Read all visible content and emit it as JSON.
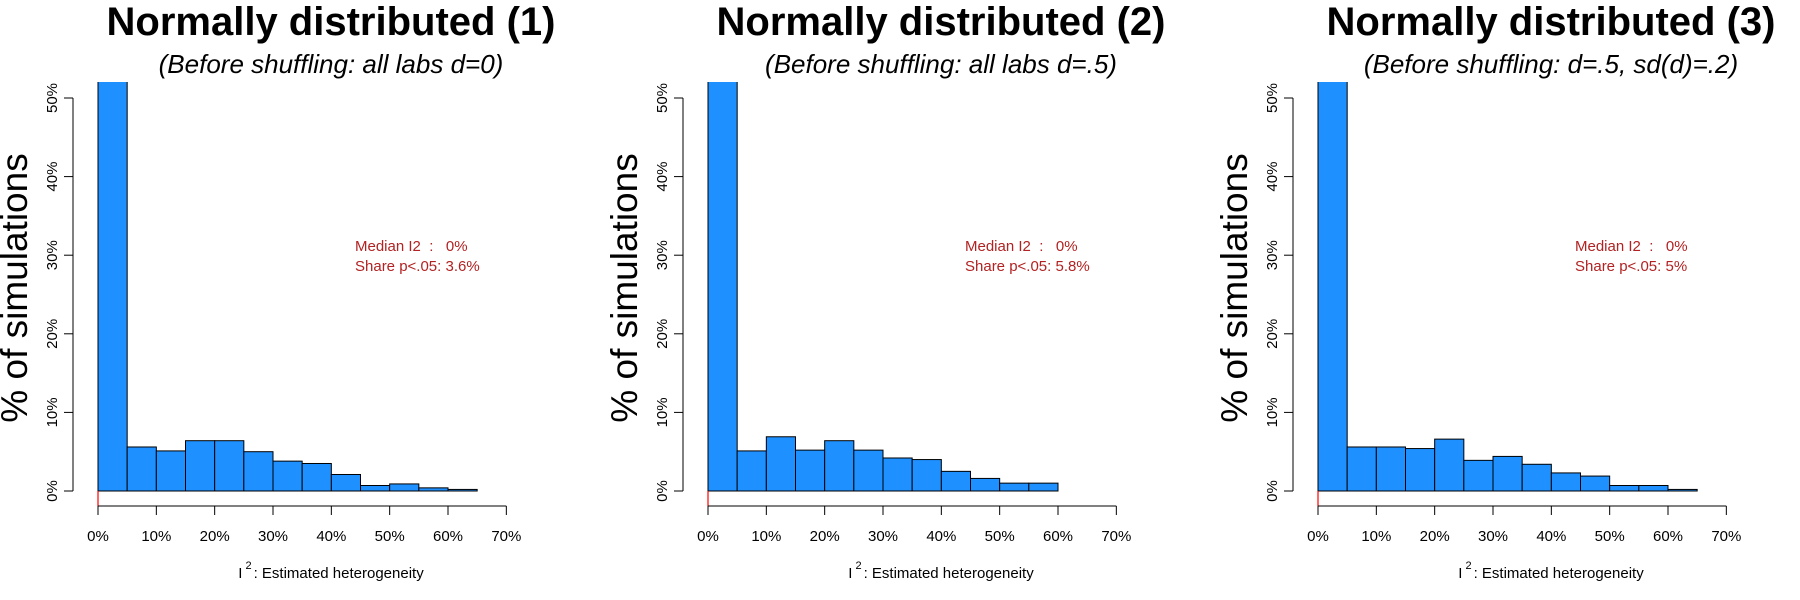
{
  "chart_data": [
    {
      "type": "bar",
      "title": "Normally distributed (1)",
      "subtitle": "(Before shuffling: all labs d=0)",
      "xlabel": "I",
      "xlabel_sup": "2",
      "xlabel_rest": ": Estimated heterogeneity",
      "ylabel": "% of simulations",
      "xlim": [
        0,
        72
      ],
      "ylim": [
        0,
        52
      ],
      "x_ticks": [
        0,
        10,
        20,
        30,
        40,
        50,
        60,
        70
      ],
      "x_tick_labels": [
        "0%",
        "10%",
        "20%",
        "30%",
        "40%",
        "50%",
        "60%",
        "70%"
      ],
      "y_ticks": [
        0,
        10,
        20,
        30,
        40,
        50
      ],
      "y_tick_labels": [
        "0%",
        "10%",
        "20%",
        "30%",
        "40%",
        "50%"
      ],
      "bin_width": 5,
      "bin_starts": [
        0,
        5,
        10,
        15,
        20,
        25,
        30,
        35,
        40,
        45,
        50,
        55,
        60
      ],
      "values": [
        56,
        5.6,
        5.1,
        6.4,
        6.4,
        5.0,
        3.8,
        3.5,
        2.1,
        0.7,
        0.9,
        0.4,
        0.2
      ],
      "annotation": {
        "line1": "Median I2  :   0%",
        "line2": "Share p<.05: 3.6%"
      }
    },
    {
      "type": "bar",
      "title": "Normally distributed (2)",
      "subtitle": "(Before shuffling: all labs d=.5)",
      "xlabel": "I",
      "xlabel_sup": "2",
      "xlabel_rest": ": Estimated heterogeneity",
      "ylabel": "% of simulations",
      "xlim": [
        0,
        72
      ],
      "ylim": [
        0,
        52
      ],
      "x_ticks": [
        0,
        10,
        20,
        30,
        40,
        50,
        60,
        70
      ],
      "x_tick_labels": [
        "0%",
        "10%",
        "20%",
        "30%",
        "40%",
        "50%",
        "60%",
        "70%"
      ],
      "y_ticks": [
        0,
        10,
        20,
        30,
        40,
        50
      ],
      "y_tick_labels": [
        "0%",
        "10%",
        "20%",
        "30%",
        "40%",
        "50%"
      ],
      "bin_width": 5,
      "bin_starts": [
        0,
        5,
        10,
        15,
        20,
        25,
        30,
        35,
        40,
        45,
        50,
        55
      ],
      "values": [
        56,
        5.1,
        6.9,
        5.2,
        6.4,
        5.2,
        4.2,
        4.0,
        2.5,
        1.6,
        1.0,
        1.0
      ],
      "annotation": {
        "line1": "Median I2  :   0%",
        "line2": "Share p<.05: 5.8%"
      }
    },
    {
      "type": "bar",
      "title": "Normally distributed (3)",
      "subtitle": "(Before shuffling: d=.5, sd(d)=.2)",
      "xlabel": "I",
      "xlabel_sup": "2",
      "xlabel_rest": ": Estimated heterogeneity",
      "ylabel": "% of simulations",
      "xlim": [
        0,
        72
      ],
      "ylim": [
        0,
        52
      ],
      "x_ticks": [
        0,
        10,
        20,
        30,
        40,
        50,
        60,
        70
      ],
      "x_tick_labels": [
        "0%",
        "10%",
        "20%",
        "30%",
        "40%",
        "50%",
        "60%",
        "70%"
      ],
      "y_ticks": [
        0,
        10,
        20,
        30,
        40,
        50
      ],
      "y_tick_labels": [
        "0%",
        "10%",
        "20%",
        "30%",
        "40%",
        "50%"
      ],
      "bin_width": 5,
      "bin_starts": [
        0,
        5,
        10,
        15,
        20,
        25,
        30,
        35,
        40,
        45,
        50,
        55,
        60
      ],
      "values": [
        56,
        5.6,
        5.6,
        5.4,
        6.6,
        3.9,
        4.4,
        3.4,
        2.3,
        1.9,
        0.7,
        0.7,
        0.2
      ],
      "annotation": {
        "line1": "Median I2  :   0%",
        "line2": "Share p<.05: 5%"
      }
    }
  ],
  "style": {
    "bar_fill": "#1E90FF",
    "bar_stroke": "#000000",
    "annotation_color": "#B22222",
    "marker_color": "#FF0000"
  }
}
